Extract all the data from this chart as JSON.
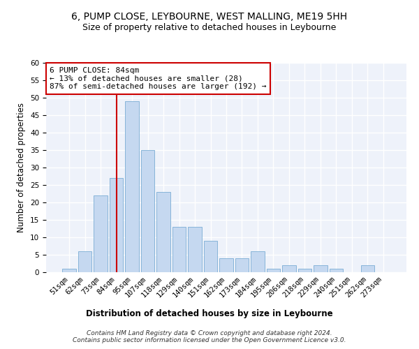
{
  "title": "6, PUMP CLOSE, LEYBOURNE, WEST MALLING, ME19 5HH",
  "subtitle": "Size of property relative to detached houses in Leybourne",
  "xlabel": "Distribution of detached houses by size in Leybourne",
  "ylabel": "Number of detached properties",
  "bar_labels": [
    "51sqm",
    "62sqm",
    "73sqm",
    "84sqm",
    "95sqm",
    "107sqm",
    "118sqm",
    "129sqm",
    "140sqm",
    "151sqm",
    "162sqm",
    "173sqm",
    "184sqm",
    "195sqm",
    "206sqm",
    "218sqm",
    "229sqm",
    "240sqm",
    "251sqm",
    "262sqm",
    "273sqm"
  ],
  "bar_values": [
    1,
    6,
    22,
    27,
    49,
    35,
    23,
    13,
    13,
    9,
    4,
    4,
    6,
    1,
    2,
    1,
    2,
    1,
    0,
    2,
    0
  ],
  "bar_color": "#c5d8f0",
  "bar_edge_color": "#7aadd4",
  "vline_x": 3,
  "vline_color": "#cc0000",
  "annotation_text": "6 PUMP CLOSE: 84sqm\n← 13% of detached houses are smaller (28)\n87% of semi-detached houses are larger (192) →",
  "annotation_box_color": "#ffffff",
  "annotation_box_edge_color": "#cc0000",
  "ylim": [
    0,
    60
  ],
  "yticks": [
    0,
    5,
    10,
    15,
    20,
    25,
    30,
    35,
    40,
    45,
    50,
    55,
    60
  ],
  "background_color": "#eef2fa",
  "footer_line1": "Contains HM Land Registry data © Crown copyright and database right 2024.",
  "footer_line2": "Contains public sector information licensed under the Open Government Licence v3.0.",
  "title_fontsize": 10,
  "subtitle_fontsize": 9,
  "xlabel_fontsize": 8.5,
  "ylabel_fontsize": 8.5,
  "tick_fontsize": 7.5,
  "annotation_fontsize": 8,
  "footer_fontsize": 6.5
}
